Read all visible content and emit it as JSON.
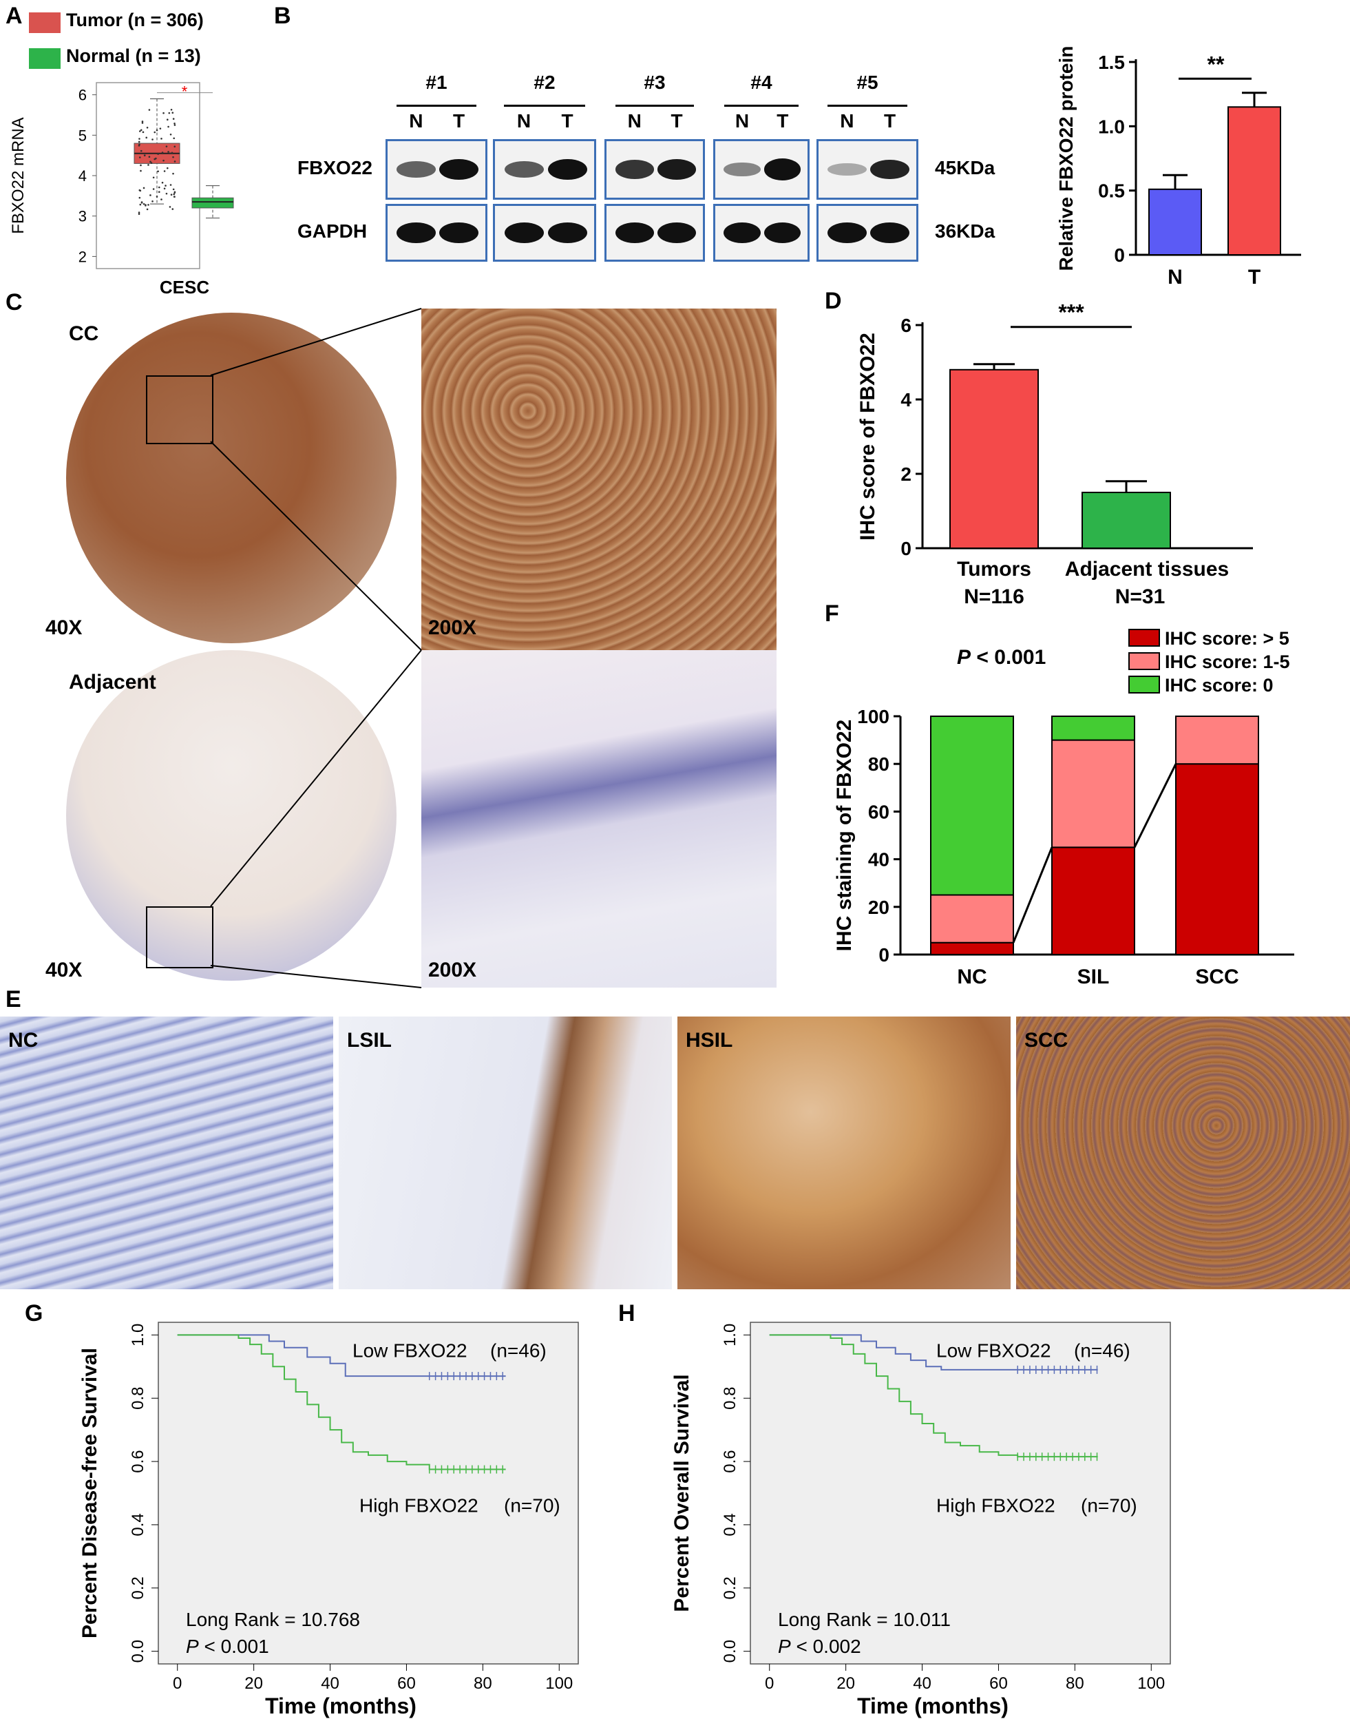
{
  "panels": {
    "A": "A",
    "B": "B",
    "C": "C",
    "D": "D",
    "E": "E",
    "F": "F",
    "G": "G",
    "H": "H"
  },
  "colors": {
    "tumor": "#d9534f",
    "normal": "#2db34a",
    "blot_border": "#3d6fb6",
    "bar_n": "#5b5bf5",
    "bar_t": "#f44a4a",
    "ihc_high": "#cc0000",
    "ihc_mid": "#ff8080",
    "ihc_zero": "#44cc33",
    "km_low": "#5c6fb8",
    "km_high": "#48b848",
    "km_bg": "#efefef"
  },
  "panelA": {
    "legend": [
      {
        "label": "Tumor (n = 306)",
        "color": "#d9534f"
      },
      {
        "label": "Normal (n = 13)",
        "color": "#2db34a"
      }
    ],
    "sig_mark": "*"
  },
  "panelB": {
    "samples": [
      "#1",
      "#2",
      "#3",
      "#4",
      "#5"
    ],
    "lanes": [
      "N",
      "T"
    ],
    "rows": [
      {
        "protein": "FBXO22",
        "size": "45KDa"
      },
      {
        "protein": "GAPDH",
        "size": "36KDa"
      }
    ]
  },
  "panelC": {
    "top_label": "CC",
    "bottom_label": "Adjacent",
    "mag_low": "40X",
    "mag_high": "200X"
  },
  "panelE": {
    "labels": [
      "NC",
      "LSIL",
      "HSIL",
      "SCC"
    ]
  },
  "chart_data": [
    {
      "id": "A",
      "type": "box",
      "ylabel": "FBXO22 mRNA",
      "categories": [
        "CESC"
      ],
      "yticks": [
        2,
        3,
        4,
        5,
        6
      ],
      "ylim": [
        1.7,
        6.3
      ],
      "series": [
        {
          "name": "Tumor (n = 306)",
          "q1": 4.3,
          "median": 4.55,
          "q3": 4.8,
          "min": 3.3,
          "max": 5.9
        },
        {
          "name": "Normal (n = 13)",
          "q1": 3.2,
          "median": 3.35,
          "q3": 3.45,
          "min": 2.95,
          "max": 3.75
        }
      ]
    },
    {
      "id": "B",
      "type": "bar",
      "ylabel": "Relative FBXO22 protein",
      "categories": [
        "N",
        "T"
      ],
      "values": [
        0.51,
        1.15
      ],
      "errors": [
        0.11,
        0.11
      ],
      "yticks": [
        "0",
        "0.5",
        "1.0",
        "1.5"
      ],
      "ylim": [
        0,
        1.5
      ],
      "significance": "**"
    },
    {
      "id": "D",
      "type": "bar",
      "ylabel": "IHC score of FBXO22",
      "categories": [
        "Tumors",
        "Adjacent tissues"
      ],
      "sublabels": [
        "N=116",
        "N=31"
      ],
      "values": [
        4.8,
        1.5
      ],
      "errors": [
        0.15,
        0.3
      ],
      "yticks": [
        0,
        2,
        4,
        6
      ],
      "ylim": [
        0,
        6
      ],
      "significance": "***"
    },
    {
      "id": "F",
      "type": "bar",
      "stacked": true,
      "ylabel": "IHC staining of FBXO22",
      "pvalue_p": "P",
      "pvalue_rest": " < 0.001",
      "categories": [
        "NC",
        "SIL",
        "SCC"
      ],
      "yticks": [
        0,
        20,
        40,
        60,
        80,
        100
      ],
      "ylim": [
        0,
        100
      ],
      "series": [
        {
          "name": "IHC score: > 5",
          "values": [
            5,
            45,
            80
          ]
        },
        {
          "name": "IHC score: 1-5",
          "values": [
            20,
            45,
            20
          ]
        },
        {
          "name": "IHC score: 0",
          "values": [
            75,
            10,
            0
          ]
        }
      ]
    },
    {
      "id": "G",
      "type": "line",
      "step": true,
      "ylabel": "Percent Disease-free Survival",
      "xlabel": "Time (months)",
      "xticks": [
        0,
        20,
        40,
        60,
        80,
        100
      ],
      "yticks": [
        "0.0",
        "0.2",
        "0.4",
        "0.6",
        "0.8",
        "1.0"
      ],
      "xlim": [
        -5,
        105
      ],
      "ylim": [
        -0.04,
        1.04
      ],
      "annotation": "Long Rank = 10.768",
      "pvalue_p": "P",
      "pvalue_rest": " < 0.001",
      "series": [
        {
          "name": "Low FBXO22",
          "n_label": "(n=46)",
          "x": [
            0,
            20,
            24,
            28,
            34,
            40,
            44,
            86
          ],
          "y": [
            1.0,
            1.0,
            0.98,
            0.96,
            0.93,
            0.91,
            0.87,
            0.87
          ]
        },
        {
          "name": "High FBXO22",
          "n_label": "(n=70)",
          "x": [
            0,
            12,
            16,
            19,
            22,
            25,
            28,
            31,
            34,
            37,
            40,
            43,
            46,
            50,
            55,
            60,
            66,
            86
          ],
          "y": [
            1.0,
            1.0,
            0.99,
            0.97,
            0.94,
            0.9,
            0.86,
            0.82,
            0.78,
            0.74,
            0.7,
            0.66,
            0.63,
            0.62,
            0.6,
            0.59,
            0.575,
            0.575
          ]
        }
      ],
      "censor_start": [
        66,
        66
      ]
    },
    {
      "id": "H",
      "type": "line",
      "step": true,
      "ylabel": "Percent Overall  Survival",
      "xlabel": "Time (months)",
      "xticks": [
        0,
        20,
        40,
        60,
        80,
        100
      ],
      "yticks": [
        "0.0",
        "0.2",
        "0.4",
        "0.6",
        "0.8",
        "1.0"
      ],
      "xlim": [
        -5,
        105
      ],
      "ylim": [
        -0.04,
        1.04
      ],
      "annotation": "Long Rank = 10.011",
      "pvalue_p": "P",
      "pvalue_rest": " < 0.002",
      "series": [
        {
          "name": "Low FBXO22",
          "n_label": "(n=46)",
          "x": [
            0,
            20,
            24,
            28,
            33,
            37,
            41,
            45,
            86
          ],
          "y": [
            1.0,
            1.0,
            0.98,
            0.96,
            0.94,
            0.92,
            0.9,
            0.89,
            0.89
          ]
        },
        {
          "name": "High FBXO22",
          "n_label": "(n=70)",
          "x": [
            0,
            12,
            16,
            19,
            22,
            25,
            28,
            31,
            34,
            37,
            40,
            43,
            46,
            50,
            55,
            60,
            65,
            86
          ],
          "y": [
            1.0,
            1.0,
            0.99,
            0.97,
            0.94,
            0.91,
            0.87,
            0.83,
            0.79,
            0.75,
            0.72,
            0.69,
            0.66,
            0.65,
            0.63,
            0.62,
            0.615,
            0.615
          ]
        }
      ],
      "censor_start": [
        65,
        65
      ]
    }
  ]
}
